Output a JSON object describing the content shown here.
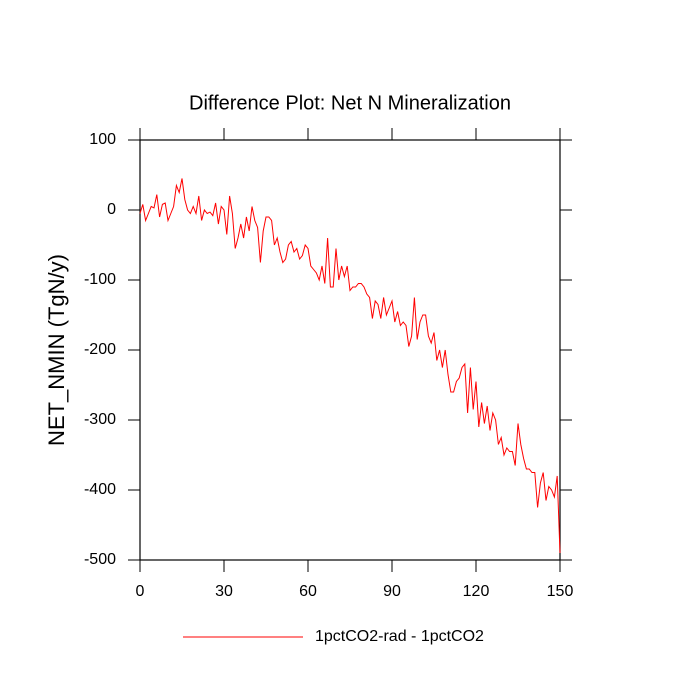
{
  "chart_data": {
    "type": "line",
    "title": "Difference Plot: Net N Mineralization",
    "ylabel": "NET_NMIN  (TgN/y)",
    "x": [
      0,
      1,
      2,
      3,
      4,
      5,
      6,
      7,
      8,
      9,
      10,
      11,
      12,
      13,
      14,
      15,
      16,
      17,
      18,
      19,
      20,
      21,
      22,
      23,
      24,
      25,
      26,
      27,
      28,
      29,
      30,
      31,
      32,
      33,
      34,
      35,
      36,
      37,
      38,
      39,
      40,
      41,
      42,
      43,
      44,
      45,
      46,
      47,
      48,
      49,
      50,
      51,
      52,
      53,
      54,
      55,
      56,
      57,
      58,
      59,
      60,
      61,
      62,
      63,
      64,
      65,
      66,
      67,
      68,
      69,
      70,
      71,
      72,
      73,
      74,
      75,
      76,
      77,
      78,
      79,
      80,
      81,
      82,
      83,
      84,
      85,
      86,
      87,
      88,
      89,
      90,
      91,
      92,
      93,
      94,
      95,
      96,
      97,
      98,
      99,
      100,
      101,
      102,
      103,
      104,
      105,
      106,
      107,
      108,
      109,
      110,
      111,
      112,
      113,
      114,
      115,
      116,
      117,
      118,
      119,
      120,
      121,
      122,
      123,
      124,
      125,
      126,
      127,
      128,
      129,
      130,
      131,
      132,
      133,
      134,
      135,
      136,
      137,
      138,
      139,
      140,
      141,
      142,
      143,
      144,
      145,
      146,
      147,
      148,
      149,
      150
    ],
    "series": [
      {
        "name": "1pctCO2-rad - 1pctCO2",
        "color": "#ff0000",
        "values": [
          -5,
          8,
          -15,
          -5,
          5,
          3,
          22,
          -10,
          8,
          10,
          -15,
          -5,
          5,
          35,
          25,
          45,
          15,
          0,
          -5,
          5,
          -5,
          20,
          -15,
          0,
          -5,
          -3,
          -8,
          10,
          -20,
          5,
          0,
          -35,
          20,
          -5,
          -55,
          -40,
          -20,
          -40,
          -10,
          -30,
          5,
          -15,
          -25,
          -75,
          -30,
          -10,
          -10,
          -15,
          -50,
          -40,
          -60,
          -75,
          -70,
          -50,
          -45,
          -60,
          -55,
          -70,
          -65,
          -50,
          -55,
          -80,
          -85,
          -90,
          -100,
          -80,
          -105,
          -40,
          -110,
          -110,
          -55,
          -100,
          -80,
          -95,
          -80,
          -115,
          -110,
          -110,
          -105,
          -105,
          -110,
          -120,
          -125,
          -155,
          -130,
          -135,
          -155,
          -125,
          -150,
          -140,
          -130,
          -160,
          -145,
          -165,
          -160,
          -165,
          -195,
          -180,
          -125,
          -185,
          -160,
          -150,
          -150,
          -180,
          -190,
          -175,
          -215,
          -200,
          -225,
          -200,
          -235,
          -260,
          -260,
          -245,
          -240,
          -225,
          -220,
          -290,
          -225,
          -285,
          -245,
          -310,
          -275,
          -305,
          -280,
          -315,
          -290,
          -300,
          -335,
          -325,
          -350,
          -340,
          -345,
          -345,
          -365,
          -305,
          -335,
          -355,
          -370,
          -370,
          -375,
          -375,
          -425,
          -390,
          -375,
          -415,
          -395,
          -400,
          -410,
          -380,
          -490
        ]
      }
    ],
    "xlim": [
      0,
      150
    ],
    "xticks": [
      0,
      30,
      60,
      90,
      120,
      150
    ],
    "ylim": [
      -500,
      100
    ],
    "yticks": [
      -500,
      -400,
      -300,
      -200,
      -100,
      0,
      100
    ]
  }
}
